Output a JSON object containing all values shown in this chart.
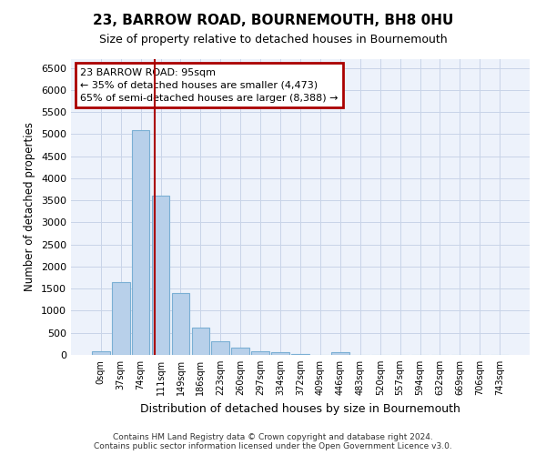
{
  "title": "23, BARROW ROAD, BOURNEMOUTH, BH8 0HU",
  "subtitle": "Size of property relative to detached houses in Bournemouth",
  "xlabel": "Distribution of detached houses by size in Bournemouth",
  "ylabel": "Number of detached properties",
  "categories": [
    "0sqm",
    "37sqm",
    "74sqm",
    "111sqm",
    "149sqm",
    "186sqm",
    "223sqm",
    "260sqm",
    "297sqm",
    "334sqm",
    "372sqm",
    "409sqm",
    "446sqm",
    "483sqm",
    "520sqm",
    "557sqm",
    "594sqm",
    "632sqm",
    "669sqm",
    "706sqm",
    "743sqm"
  ],
  "values": [
    75,
    1650,
    5100,
    3600,
    1400,
    620,
    310,
    155,
    90,
    55,
    30,
    0,
    60,
    0,
    0,
    0,
    0,
    0,
    0,
    0,
    0
  ],
  "bar_color": "#b8d0ea",
  "bar_edge_color": "#7aafd4",
  "grid_color": "#c8d4e8",
  "background_color": "#edf2fb",
  "annotation_box_text": [
    "23 BARROW ROAD: 95sqm",
    "← 35% of detached houses are smaller (4,473)",
    "65% of semi-detached houses are larger (8,388) →"
  ],
  "annotation_box_color": "#aa0000",
  "property_line_x": 2.7,
  "ylim": [
    0,
    6700
  ],
  "yticks": [
    0,
    500,
    1000,
    1500,
    2000,
    2500,
    3000,
    3500,
    4000,
    4500,
    5000,
    5500,
    6000,
    6500
  ],
  "footer_line1": "Contains HM Land Registry data © Crown copyright and database right 2024.",
  "footer_line2": "Contains public sector information licensed under the Open Government Licence v3.0."
}
